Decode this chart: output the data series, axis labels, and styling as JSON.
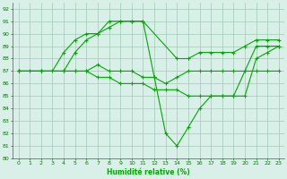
{
  "xlabel": "Humidité relative (%)",
  "bg_color": "#d8f0e8",
  "grid_color": "#aacfbf",
  "line_color": "#00aa00",
  "xlim": [
    -0.5,
    23.5
  ],
  "ylim": [
    80,
    92.5
  ],
  "xticks": [
    0,
    1,
    2,
    3,
    4,
    5,
    6,
    7,
    8,
    9,
    10,
    11,
    12,
    13,
    14,
    15,
    16,
    17,
    18,
    19,
    20,
    21,
    22,
    23
  ],
  "yticks": [
    80,
    81,
    82,
    83,
    84,
    85,
    86,
    87,
    88,
    89,
    90,
    91,
    92
  ],
  "lines": [
    {
      "x": [
        0,
        1,
        2,
        3,
        4,
        5,
        6,
        7,
        8,
        9,
        10,
        11,
        12,
        13,
        14,
        15,
        16,
        17,
        18,
        19,
        20,
        21,
        22,
        23
      ],
      "y": [
        87,
        87,
        87,
        87,
        88.5,
        89.5,
        90,
        90,
        91,
        91,
        91,
        91,
        86.5,
        86,
        86.5,
        87,
        87,
        87,
        87,
        87,
        87,
        87,
        87,
        87
      ],
      "marker": "+"
    },
    {
      "x": [
        0,
        2,
        4,
        5,
        6,
        7,
        8,
        9,
        10,
        11,
        14,
        15,
        16,
        17,
        18,
        19,
        20,
        21,
        22,
        23
      ],
      "y": [
        87,
        87,
        87,
        88.5,
        89.5,
        90,
        90.5,
        91,
        91,
        91,
        88,
        88,
        88.5,
        88.5,
        88.5,
        88.5,
        89,
        89.5,
        89.5,
        89.5
      ],
      "marker": "+"
    },
    {
      "x": [
        0,
        2,
        4,
        5,
        6,
        7,
        8,
        9,
        10,
        11,
        12,
        13,
        14,
        15,
        16,
        17,
        18,
        19,
        20,
        21,
        22,
        23
      ],
      "y": [
        87,
        87,
        87,
        87,
        87,
        87.5,
        87,
        87,
        87,
        86.5,
        86.5,
        82,
        81,
        82.5,
        84,
        85,
        85,
        85,
        87,
        89,
        89,
        89
      ],
      "marker": "+"
    },
    {
      "x": [
        0,
        2,
        4,
        5,
        6,
        7,
        8,
        9,
        10,
        11,
        12,
        13,
        14,
        15,
        16,
        17,
        18,
        19,
        20,
        21,
        22,
        23
      ],
      "y": [
        87,
        87,
        87,
        87,
        87,
        86.5,
        86.5,
        86,
        86,
        86,
        85.5,
        85.5,
        85.5,
        85,
        85,
        85,
        85,
        85,
        85,
        88,
        88.5,
        89
      ],
      "marker": "+"
    }
  ]
}
